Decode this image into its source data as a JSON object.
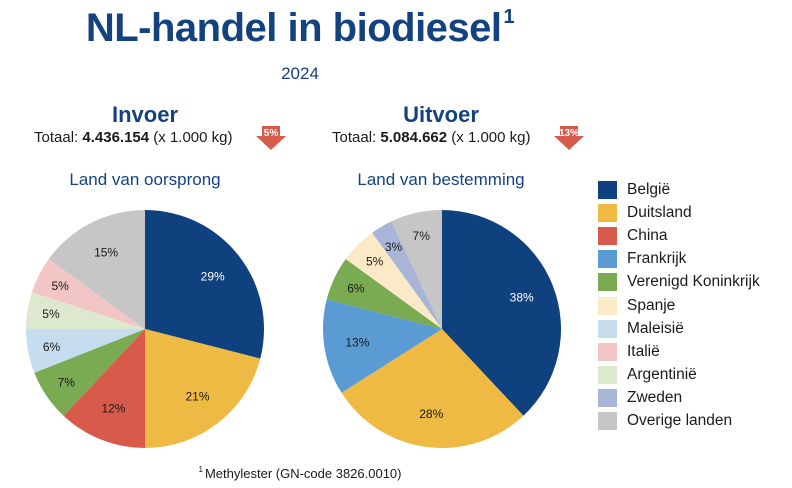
{
  "header": {
    "title": "NL-handel in biodiesel",
    "title_footnote_marker": "1",
    "year": "2024"
  },
  "footnote": {
    "marker": "1",
    "text": "Methylester (GN-code 3826.0010)"
  },
  "colors": {
    "België": "#0f417f",
    "Duitsland": "#efba44",
    "China": "#d85a4a",
    "Frankrijk": "#5a9bd3",
    "Verenigd Koninkrijk": "#7aab52",
    "Spanje": "#fbe9c8",
    "Maleisië": "#c6dcef",
    "Italië": "#f1c6c4",
    "Argentinië": "#dde9cf",
    "Zweden": "#a9b5d6",
    "Overige landen": "#c6c6c6",
    "badge": "#d85a4a",
    "heading": "#13427f"
  },
  "legend": [
    {
      "label": "België"
    },
    {
      "label": "Duitsland"
    },
    {
      "label": "China"
    },
    {
      "label": "Frankrijk"
    },
    {
      "label": "Verenigd Koninkrijk"
    },
    {
      "label": "Spanje"
    },
    {
      "label": "Maleisië"
    },
    {
      "label": "Italië"
    },
    {
      "label": "Argentinië"
    },
    {
      "label": "Zweden"
    },
    {
      "label": "Overige landen"
    }
  ],
  "invoer": {
    "heading": "Invoer",
    "total_prefix": "Totaal: ",
    "total_value": "4.436.154",
    "total_unit": " (x 1.000 kg)",
    "change_badge": "5%",
    "change_direction": "down",
    "subtitle": "Land van oorsprong"
  },
  "uitvoer": {
    "heading": "Uitvoer",
    "total_prefix": "Totaal: ",
    "total_value": "5.084.662",
    "total_unit": " (x 1.000 kg)",
    "change_badge": "13%",
    "change_direction": "down",
    "subtitle": "Land van bestemming"
  },
  "chart_data": [
    {
      "type": "pie",
      "title": "Invoer — Land van oorsprong",
      "unit": "%",
      "start": "12 o'clock, clockwise",
      "slices": [
        {
          "label": "België",
          "value": 29,
          "text": "29%",
          "label_color": "#ffffff"
        },
        {
          "label": "Duitsland",
          "value": 21,
          "text": "21%",
          "label_color": "#1a1a1a"
        },
        {
          "label": "China",
          "value": 12,
          "text": "12%",
          "label_color": "#1a1a1a"
        },
        {
          "label": "Verenigd Koninkrijk",
          "value": 7,
          "text": "7%",
          "label_color": "#1a1a1a"
        },
        {
          "label": "Maleisië",
          "value": 6,
          "text": "6%",
          "label_color": "#1a1a1a"
        },
        {
          "label": "Argentinië",
          "value": 5,
          "text": "5%",
          "label_color": "#1a1a1a"
        },
        {
          "label": "Italië",
          "value": 5,
          "text": "5%",
          "label_color": "#1a1a1a"
        },
        {
          "label": "Overige landen",
          "value": 15,
          "text": "15%",
          "label_color": "#1a1a1a"
        }
      ]
    },
    {
      "type": "pie",
      "title": "Uitvoer — Land van bestemming",
      "unit": "%",
      "start": "12 o'clock, clockwise",
      "slices": [
        {
          "label": "België",
          "value": 38,
          "text": "38%",
          "label_color": "#ffffff"
        },
        {
          "label": "Duitsland",
          "value": 28,
          "text": "28%",
          "label_color": "#1a1a1a"
        },
        {
          "label": "Frankrijk",
          "value": 13,
          "text": "13%",
          "label_color": "#1a1a1a"
        },
        {
          "label": "Verenigd Koninkrijk",
          "value": 6,
          "text": "6%",
          "label_color": "#1a1a1a"
        },
        {
          "label": "Spanje",
          "value": 5,
          "text": "5%",
          "label_color": "#1a1a1a"
        },
        {
          "label": "Zweden",
          "value": 3,
          "text": "3%",
          "label_color": "#1a1a1a"
        },
        {
          "label": "Overige landen",
          "value": 7,
          "text": "7%",
          "label_color": "#1a1a1a"
        }
      ]
    }
  ]
}
